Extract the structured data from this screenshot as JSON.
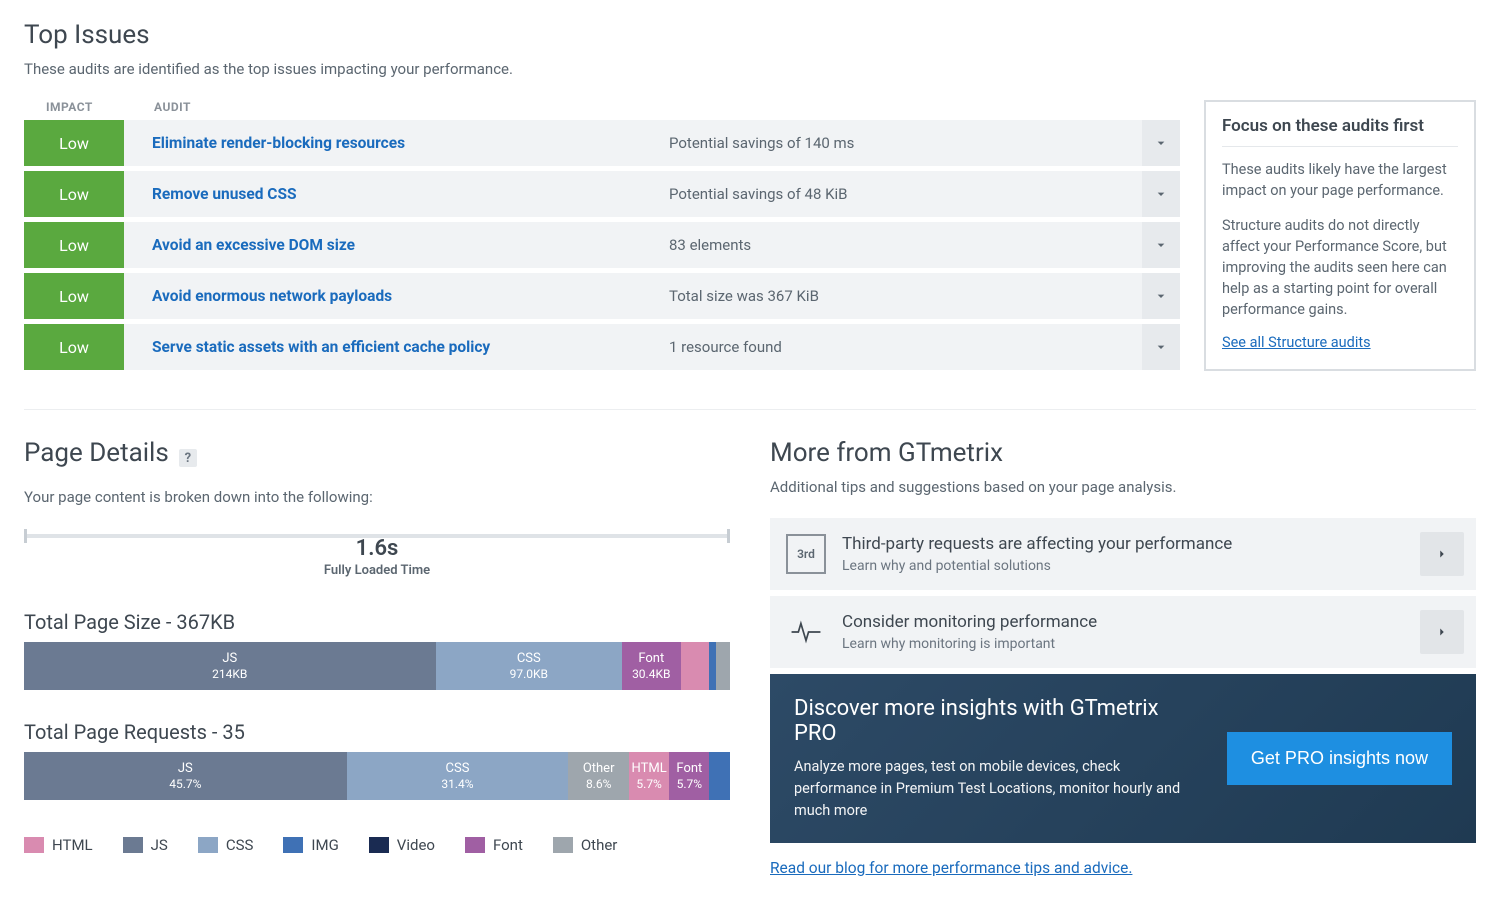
{
  "topIssues": {
    "title": "Top Issues",
    "subtitle": "These audits are identified as the top issues impacting your performance.",
    "header": {
      "impact": "IMPACT",
      "audit": "AUDIT"
    },
    "rows": [
      {
        "impact": "Low",
        "impactLevel": "low",
        "audit": "Eliminate render-blocking resources",
        "result": "Potential savings of 140 ms"
      },
      {
        "impact": "Low",
        "impactLevel": "low",
        "audit": "Remove unused CSS",
        "result": "Potential savings of 48 KiB"
      },
      {
        "impact": "Low",
        "impactLevel": "low",
        "audit": "Avoid an excessive DOM size",
        "result": "83 elements"
      },
      {
        "impact": "Low",
        "impactLevel": "low",
        "audit": "Avoid enormous network payloads",
        "result": "Total size was 367 KiB"
      },
      {
        "impact": "Low",
        "impactLevel": "low",
        "audit": "Serve static assets with an efficient cache policy",
        "result": "1 resource found"
      }
    ]
  },
  "focusBox": {
    "title": "Focus on these audits first",
    "p1": "These audits likely have the largest impact on your page performance.",
    "p2": "Structure audits do not directly affect your Performance Score, but improving the audits seen here can help as a starting point for overall performance gains.",
    "link": "See all Structure audits"
  },
  "pageDetails": {
    "title": "Page Details",
    "subtitle": "Your page content is broken down into the following:",
    "fullyLoaded": {
      "value": "1.6s",
      "label": "Fully Loaded Time"
    },
    "sizeTitle": "Total Page Size - 367KB",
    "sizeSegments": [
      {
        "name": "JS",
        "value": "214KB",
        "pct": 58.3,
        "colorClass": "c-js",
        "showLabel": true
      },
      {
        "name": "CSS",
        "value": "97.0KB",
        "pct": 26.4,
        "colorClass": "c-css",
        "showLabel": true
      },
      {
        "name": "Font",
        "value": "30.4KB",
        "pct": 8.3,
        "colorClass": "c-font",
        "showLabel": true
      },
      {
        "name": "HTML",
        "value": "",
        "pct": 4.0,
        "colorClass": "c-html",
        "showLabel": false
      },
      {
        "name": "IMG",
        "value": "",
        "pct": 1.0,
        "colorClass": "c-img",
        "showLabel": false
      },
      {
        "name": "Other",
        "value": "",
        "pct": 2.0,
        "colorClass": "c-other",
        "showLabel": false
      }
    ],
    "reqTitle": "Total Page Requests - 35",
    "reqSegments": [
      {
        "name": "JS",
        "value": "45.7%",
        "pct": 45.7,
        "colorClass": "c-js",
        "showLabel": true
      },
      {
        "name": "CSS",
        "value": "31.4%",
        "pct": 31.4,
        "colorClass": "c-css",
        "showLabel": true
      },
      {
        "name": "Other",
        "value": "8.6%",
        "pct": 8.6,
        "colorClass": "c-other",
        "showLabel": true
      },
      {
        "name": "HTML",
        "value": "5.7%",
        "pct": 5.7,
        "colorClass": "c-html",
        "showLabel": true
      },
      {
        "name": "Font",
        "value": "5.7%",
        "pct": 5.7,
        "colorClass": "c-font",
        "showLabel": true
      },
      {
        "name": "IMG",
        "value": "",
        "pct": 2.9,
        "colorClass": "c-img",
        "showLabel": false
      }
    ],
    "legend": [
      {
        "label": "HTML",
        "colorClass": "c-html"
      },
      {
        "label": "JS",
        "colorClass": "c-js"
      },
      {
        "label": "CSS",
        "colorClass": "c-css"
      },
      {
        "label": "IMG",
        "colorClass": "c-img"
      },
      {
        "label": "Video",
        "colorClass": "c-video"
      },
      {
        "label": "Font",
        "colorClass": "c-font"
      },
      {
        "label": "Other",
        "colorClass": "c-other"
      }
    ]
  },
  "more": {
    "title": "More from GTmetrix",
    "subtitle": "Additional tips and suggestions based on your page analysis.",
    "tips": [
      {
        "iconText": "3rd",
        "iconType": "border",
        "title": "Third-party requests are affecting your performance",
        "sub": "Learn why and potential solutions"
      },
      {
        "iconText": "",
        "iconType": "pulse",
        "title": "Consider monitoring performance",
        "sub": "Learn why monitoring is important"
      }
    ],
    "pro": {
      "title": "Discover more insights with GTmetrix PRO",
      "desc": "Analyze more pages, test on mobile devices, check performance in Premium Test Locations, monitor hourly and much more",
      "button": "Get PRO insights now"
    },
    "blog": "Read our blog for more performance tips and advice."
  },
  "colors": {
    "html": "#d98bb0",
    "js": "#6b7a92",
    "css": "#8ca6c5",
    "img": "#3f71b5",
    "video": "#1a2b52",
    "font": "#a05fa3",
    "other": "#9ea6ad",
    "impact_low": "#5aa93f",
    "link": "#1a6bbd",
    "row_bg": "#f1f3f5"
  }
}
